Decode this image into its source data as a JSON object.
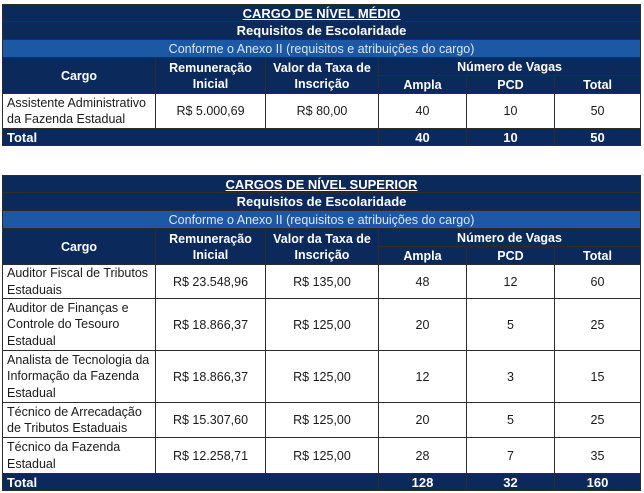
{
  "medio": {
    "title": "CARGO DE NÍVEL MÉDIO",
    "requisitos": "Requisitos de Escolaridade",
    "anexo": "Conforme o Anexo II (requisitos e atribuições do cargo)",
    "headers": {
      "cargo": "Cargo",
      "remuneracao": "Remuneração Inicial",
      "taxa": "Valor da Taxa de Inscrição",
      "vagas": "Número de Vagas",
      "ampla": "Ampla",
      "pcd": "PCD",
      "total": "Total"
    },
    "rows": [
      {
        "cargo": "Assistente Administrativo da Fazenda Estadual",
        "remuneracao": "R$ 5.000,69",
        "taxa": "R$ 80,00",
        "ampla": "40",
        "pcd": "10",
        "total": "50"
      }
    ],
    "total_row": {
      "label": "Total",
      "ampla": "40",
      "pcd": "10",
      "total": "50"
    }
  },
  "superior": {
    "title": "CARGOS DE NÍVEL SUPERIOR",
    "requisitos": "Requisitos de Escolaridade",
    "anexo": "Conforme o Anexo II (requisitos e atribuições do cargo)",
    "headers": {
      "cargo": "Cargo",
      "remuneracao": "Remuneração Inicial",
      "taxa": "Valor da Taxa de Inscrição",
      "vagas": "Número de Vagas",
      "ampla": "Ampla",
      "pcd": "PCD",
      "total": "Total"
    },
    "rows": [
      {
        "cargo": "Auditor Fiscal de Tributos Estaduais",
        "remuneracao": "R$ 23.548,96",
        "taxa": "R$ 135,00",
        "ampla": "48",
        "pcd": "12",
        "total": "60"
      },
      {
        "cargo": "Auditor de Finanças e Controle do Tesouro Estadual",
        "remuneracao": "R$ 18.866,37",
        "taxa": "R$ 125,00",
        "ampla": "20",
        "pcd": "5",
        "total": "25"
      },
      {
        "cargo": "Analista de Tecnologia da Informação da Fazenda Estadual",
        "remuneracao": "R$ 18.866,37",
        "taxa": "R$ 125,00",
        "ampla": "12",
        "pcd": "3",
        "total": "15"
      },
      {
        "cargo": "Técnico de Arrecadação de Tributos Estaduais",
        "remuneracao": "R$ 15.307,60",
        "taxa": "R$ 125,00",
        "ampla": "20",
        "pcd": "5",
        "total": "25"
      },
      {
        "cargo": "Técnico da Fazenda Estadual",
        "remuneracao": "R$ 12.258,71",
        "taxa": "R$ 125,00",
        "ampla": "28",
        "pcd": "7",
        "total": "35"
      }
    ],
    "total_row": {
      "label": "Total",
      "ampla": "128",
      "pcd": "32",
      "total": "160"
    }
  }
}
